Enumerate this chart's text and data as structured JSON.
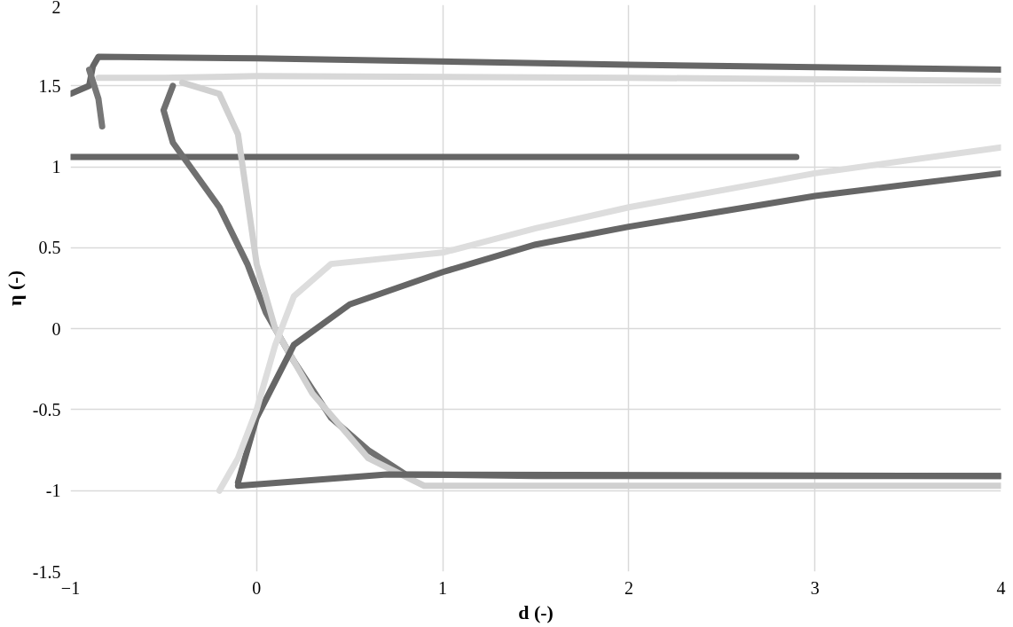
{
  "chart_data": {
    "type": "line",
    "xlabel": "d (-)",
    "ylabel": "η (-)",
    "xlim": [
      -1,
      4
    ],
    "ylim": [
      -1.5,
      2
    ],
    "xticks": [
      -1,
      0,
      1,
      2,
      3,
      4
    ],
    "yticks": [
      {
        "value": -1.5,
        "label": "-1.5"
      },
      {
        "value": -1,
        "label": "-1"
      },
      {
        "value": -0.5,
        "label": "-0.5"
      },
      {
        "value": 0,
        "label": "0"
      },
      {
        "value": 0.5,
        "label": "0.5"
      },
      {
        "value": 1,
        "label": "1"
      },
      {
        "value": 1.5,
        "label": "1.5"
      },
      {
        "value": 2,
        "label": "2"
      }
    ],
    "grid": true,
    "marker": "none",
    "line_style": "solid",
    "series": [
      {
        "color": "#666666",
        "x": [
          -1,
          -0.9,
          -0.88,
          -0.85,
          0,
          2,
          4
        ],
        "values": [
          1.45,
          1.5,
          1.62,
          1.68,
          1.67,
          1.63,
          1.6
        ]
      },
      {
        "color": "#d8d8d8",
        "x": [
          -0.85,
          -0.5,
          0,
          2,
          4
        ],
        "values": [
          1.55,
          1.55,
          1.56,
          1.55,
          1.53
        ]
      },
      {
        "color": "#777777",
        "x": [
          -0.9,
          -0.85,
          -0.83
        ],
        "values": [
          1.6,
          1.42,
          1.25
        ]
      },
      {
        "color": "#666666",
        "x": [
          -1,
          2.9
        ],
        "values": [
          1.06,
          1.06
        ]
      },
      {
        "color": "#707070",
        "x": [
          -0.45,
          -0.5,
          -0.45,
          -0.2,
          -0.05,
          0.05,
          0.2,
          0.4,
          0.6,
          0.8,
          1.5,
          4
        ],
        "values": [
          1.5,
          1.35,
          1.15,
          0.75,
          0.4,
          0.1,
          -0.2,
          -0.55,
          -0.75,
          -0.9,
          -0.91,
          -0.91
        ]
      },
      {
        "color": "#d0d0d0",
        "x": [
          -0.4,
          -0.2,
          -0.1,
          0,
          0.1,
          0.3,
          0.6,
          0.9,
          4
        ],
        "values": [
          1.52,
          1.45,
          1.2,
          0.4,
          0,
          -0.4,
          -0.8,
          -0.97,
          -0.97
        ]
      },
      {
        "color": "#666666",
        "x": [
          -0.1,
          0,
          0.2,
          0.5,
          1,
          1.5,
          2,
          3,
          4
        ],
        "values": [
          -0.95,
          -0.55,
          -0.1,
          0.15,
          0.35,
          0.52,
          0.63,
          0.82,
          0.96
        ]
      },
      {
        "color": "#dddddd",
        "x": [
          -0.2,
          -0.1,
          0,
          0.1,
          0.2,
          0.4,
          1,
          1.5,
          2,
          3,
          4
        ],
        "values": [
          -1,
          -0.8,
          -0.5,
          -0.1,
          0.2,
          0.4,
          0.47,
          0.62,
          0.75,
          0.96,
          1.12
        ]
      },
      {
        "color": "#666666",
        "x": [
          -0.1,
          0.7,
          4
        ],
        "values": [
          -0.97,
          -0.9,
          -0.91
        ]
      }
    ]
  }
}
